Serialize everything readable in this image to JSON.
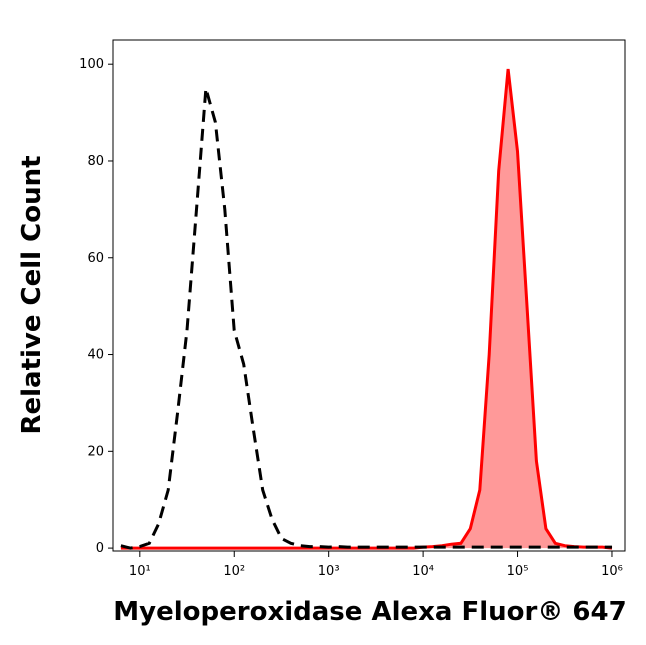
{
  "chart_data": {
    "type": "histogram-overlay",
    "xlabel": "Myeloperoxidase Alexa Fluor® 647",
    "ylabel": "Relative Cell Count",
    "xscale": "log",
    "xlim": [
      5.2,
      1374000
    ],
    "ylim": [
      -0.6,
      105
    ],
    "xticks": [
      {
        "value": 10,
        "label": "10¹"
      },
      {
        "value": 100,
        "label": "10²"
      },
      {
        "value": 1000,
        "label": "10³"
      },
      {
        "value": 10000,
        "label": "10⁴"
      },
      {
        "value": 100000,
        "label": "10⁵"
      },
      {
        "value": 1000000,
        "label": "10⁶"
      }
    ],
    "yticks": [
      0,
      20,
      40,
      60,
      80,
      100
    ],
    "x": [
      6.31,
      7.94,
      10,
      12.6,
      15.8,
      20,
      25.1,
      31.6,
      39.8,
      50.1,
      63.1,
      79.4,
      100,
      126,
      158,
      200,
      251,
      316,
      398,
      501,
      631,
      794,
      1000,
      1259,
      1585,
      1995,
      2512,
      3162,
      3981,
      5012,
      6310,
      7943,
      10000,
      12589,
      15849,
      19953,
      25119,
      31623,
      39811,
      50119,
      63096,
      79433,
      100000,
      125893,
      158489,
      199526,
      251189,
      316228,
      398107,
      501187,
      630957,
      794328,
      1000000
    ],
    "series": [
      {
        "color": "#000000",
        "dashed": true,
        "filled": false,
        "values": [
          0.5,
          0,
          0.3,
          1,
          5,
          12,
          28,
          45,
          70,
          95,
          88,
          70,
          45,
          38,
          25,
          12,
          6,
          2,
          1,
          0.5,
          0.3,
          0.3,
          0.2,
          0.3,
          0.2,
          0.2,
          0.2,
          0.2,
          0.2,
          0.2,
          0.2,
          0.2,
          0.2,
          0.2,
          0.2,
          0.2,
          0.2,
          0.2,
          0.2,
          0.2,
          0.2,
          0.2,
          0.2,
          0.2,
          0.2,
          0.2,
          0.2,
          0.2,
          0.2,
          0.2,
          0.2,
          0.2,
          0.2
        ]
      },
      {
        "color": "#ff0000",
        "fill": "#ff9999",
        "dashed": false,
        "filled": true,
        "values": [
          0,
          0,
          0,
          0,
          0,
          0,
          0,
          0,
          0,
          0,
          0,
          0,
          0,
          0,
          0,
          0,
          0,
          0,
          0,
          0,
          0,
          0,
          0,
          0,
          0,
          0,
          0,
          0,
          0,
          0,
          0,
          0,
          0.2,
          0.3,
          0.5,
          0.8,
          1,
          4,
          12,
          40,
          78,
          99,
          82,
          50,
          18,
          4,
          1,
          0.5,
          0.3,
          0.2,
          0.2,
          0.2,
          0
        ]
      }
    ]
  }
}
